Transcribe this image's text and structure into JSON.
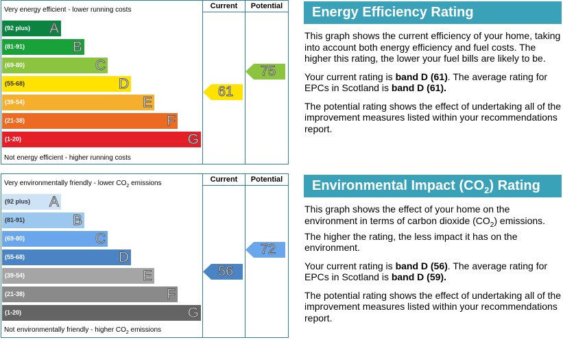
{
  "chart_data": [
    {
      "type": "bar",
      "id": "energy",
      "top_text": "Very energy efficient - lower running costs",
      "bottom_text": "Not energy efficient - higher running costs",
      "column_headers": [
        "Current",
        "Potential"
      ],
      "bands": [
        {
          "range": "(92 plus)",
          "letter": "A",
          "min": 92,
          "max": 100,
          "color": "#0b8341"
        },
        {
          "range": "(81-91)",
          "letter": "B",
          "min": 81,
          "max": 91,
          "color": "#1aa23a"
        },
        {
          "range": "(69-80)",
          "letter": "C",
          "min": 69,
          "max": 80,
          "color": "#8bc43f"
        },
        {
          "range": "(55-68)",
          "letter": "D",
          "min": 55,
          "max": 68,
          "color": "#ffe200"
        },
        {
          "range": "(39-54)",
          "letter": "E",
          "min": 39,
          "max": 54,
          "color": "#f6ae2d"
        },
        {
          "range": "(21-38)",
          "letter": "F",
          "min": 21,
          "max": 38,
          "color": "#ed6a23"
        },
        {
          "range": "(1-20)",
          "letter": "G",
          "min": 1,
          "max": 20,
          "color": "#e41f28"
        }
      ],
      "current": {
        "value": 61,
        "band": "D",
        "color": "#ffe200"
      },
      "potential": {
        "value": 75,
        "band": "C",
        "color": "#8bc43f"
      }
    },
    {
      "type": "bar",
      "id": "environment",
      "top_text": "Very environmentally friendly - lower CO",
      "top_text_sub": "2",
      "top_text_end": " emissions",
      "bottom_text": "Not environmentally friendly - higher CO",
      "bottom_text_sub": "2",
      "bottom_text_end": " emissions",
      "column_headers": [
        "Current",
        "Potential"
      ],
      "bands": [
        {
          "range": "(92 plus)",
          "letter": "A",
          "min": 92,
          "max": 100,
          "color": "#cfe3f7"
        },
        {
          "range": "(81-91)",
          "letter": "B",
          "min": 81,
          "max": 91,
          "color": "#9cc8ef"
        },
        {
          "range": "(69-80)",
          "letter": "C",
          "min": 69,
          "max": 80,
          "color": "#6aa6ec"
        },
        {
          "range": "(55-68)",
          "letter": "D",
          "min": 55,
          "max": 68,
          "color": "#4a84c4"
        },
        {
          "range": "(39-54)",
          "letter": "E",
          "min": 39,
          "max": 54,
          "color": "#a5a5a5"
        },
        {
          "range": "(21-38)",
          "letter": "F",
          "min": 21,
          "max": 38,
          "color": "#8a8a8a"
        },
        {
          "range": "(1-20)",
          "letter": "G",
          "min": 1,
          "max": 20,
          "color": "#646464"
        }
      ],
      "current": {
        "value": 56,
        "band": "D",
        "color": "#4a84c4"
      },
      "potential": {
        "value": 72,
        "band": "C",
        "color": "#6aa6ec"
      }
    }
  ],
  "energy_info": {
    "title": "Energy Efficiency Rating",
    "para1": "This graph shows the current efficiency of your home, taking into account both energy efficiency and fuel costs. The higher this rating, the lower your fuel bills are likely to be.",
    "para2_a": "Your current rating is ",
    "para2_b": "band D (61)",
    "para2_c": ". The average rating for EPCs in Scotland is ",
    "para2_d": "band D (61).",
    "para3": "The potential rating shows the effect of undertaking all of the improvement measures listed within your recommendations report."
  },
  "environment_info": {
    "title_a": "Environmental Impact (CO",
    "title_sub": "2",
    "title_b": ") Rating",
    "para1_a": "This graph shows the effect of your home on the environment in terms of carbon dioxide (CO",
    "para1_sub": "2",
    "para1_b": ") emissions. The higher the rating, the less impact it has on the environment.",
    "para2_a": "Your current rating is ",
    "para2_b": "band D (56)",
    "para2_c": ". The average rating for EPCs in Scotland is ",
    "para2_d": "band D (59).",
    "para3": "The potential rating shows the effect of undertaking all of the improvement measures listed within your recommendations report."
  }
}
